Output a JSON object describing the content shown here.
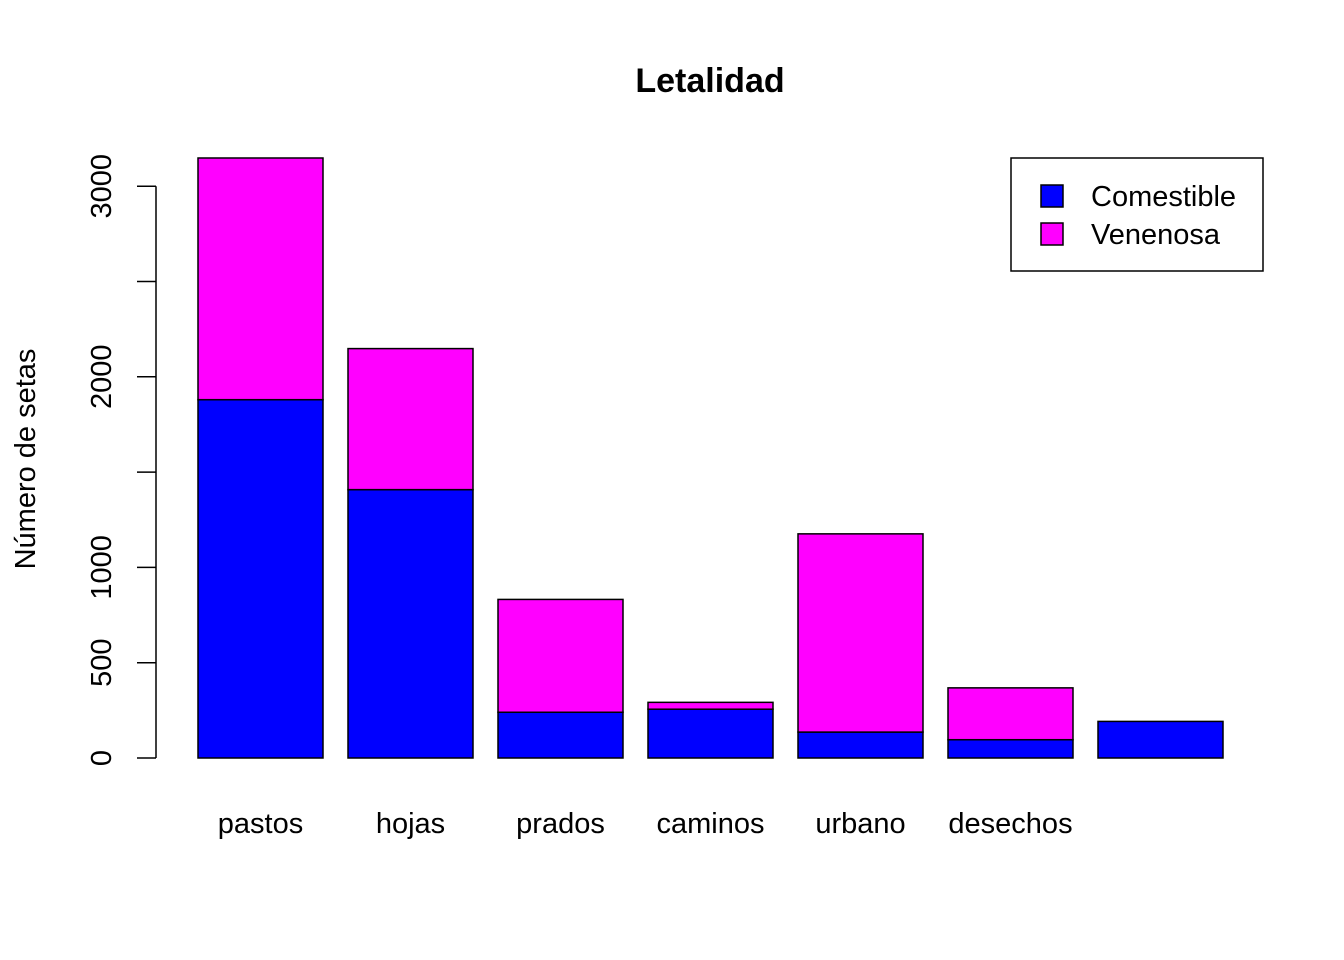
{
  "chart_data": {
    "type": "bar",
    "stacked": true,
    "title": "Letalidad",
    "xlabel": "",
    "ylabel": "Número de setas",
    "categories": [
      "pastos",
      "hojas",
      "prados",
      "caminos",
      "urbano",
      "desechos",
      ""
    ],
    "series": [
      {
        "name": "Comestible",
        "color": "#0000FF",
        "values": [
          1880,
          1408,
          240,
          256,
          136,
          96,
          192
        ]
      },
      {
        "name": "Venenosa",
        "color": "#FF00FF",
        "values": [
          1268,
          740,
          592,
          36,
          1040,
          272,
          0
        ]
      }
    ],
    "yticks": [
      0,
      500,
      1000,
      2000,
      3000
    ],
    "minor_yticks": [
      1500,
      2500
    ],
    "ylim": [
      0,
      3150
    ],
    "grid": false,
    "legend": {
      "position": "top-right",
      "entries": [
        "Comestible",
        "Venenosa"
      ]
    }
  }
}
